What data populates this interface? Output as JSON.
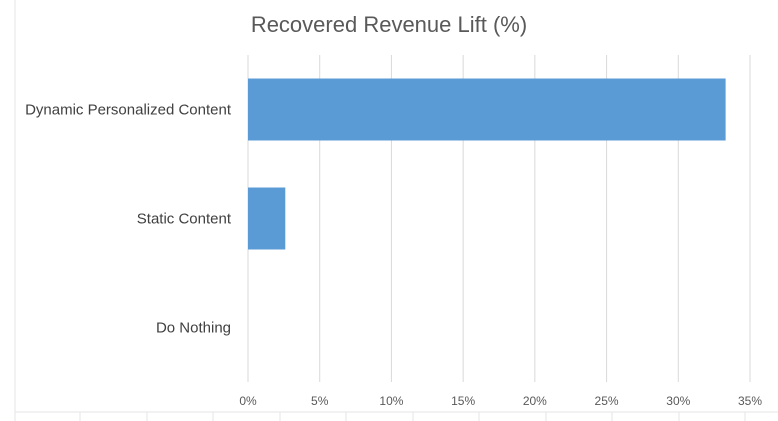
{
  "chart_data": {
    "type": "bar",
    "orientation": "horizontal",
    "title": "Recovered Revenue Lift (%)",
    "categories": [
      "Dynamic Personalized Content",
      "Static Content",
      "Do Nothing"
    ],
    "values": [
      33.3,
      2.6,
      0
    ],
    "xlim": [
      0,
      35
    ],
    "xticks": [
      0,
      5,
      10,
      15,
      20,
      25,
      30,
      35
    ],
    "xtick_labels": [
      "0%",
      "5%",
      "10%",
      "15%",
      "20%",
      "25%",
      "30%",
      "35%"
    ],
    "grid": "vertical",
    "legend": "none",
    "bar_color": "#5B9BD5"
  }
}
